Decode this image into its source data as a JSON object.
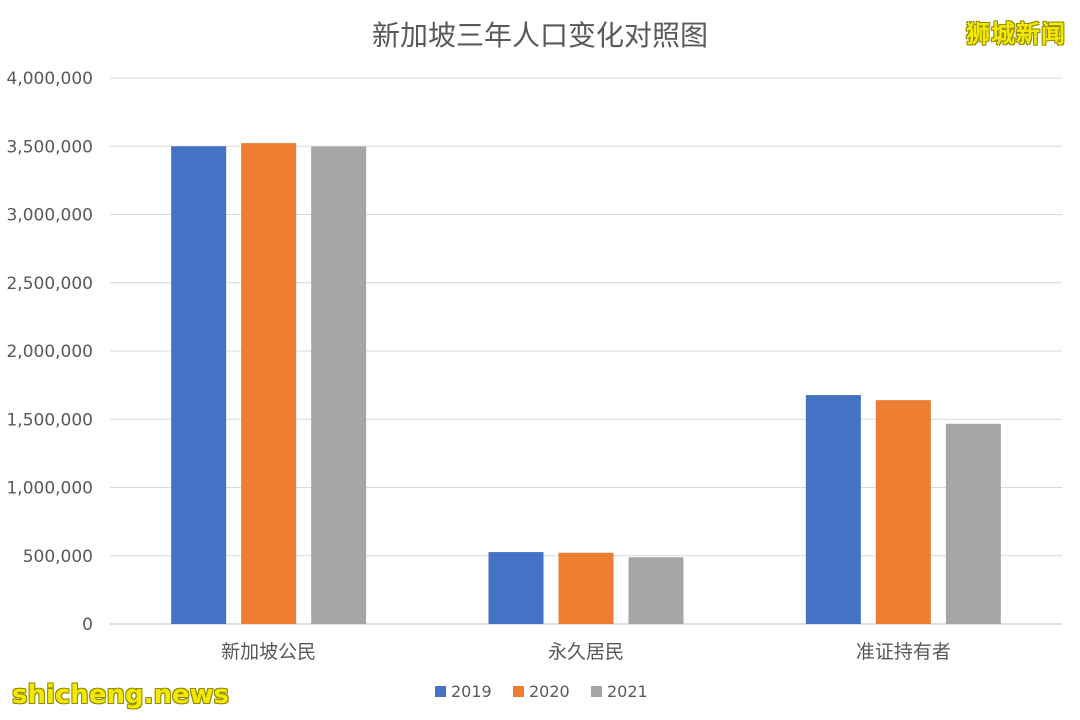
{
  "watermarks": {
    "top_right": "狮城新闻",
    "bottom_left": "shicheng.news"
  },
  "chart_data": {
    "type": "bar",
    "title": "新加坡三年人口变化对照图",
    "xlabel": "",
    "ylabel": "",
    "categories": [
      "新加坡公民",
      "永久居民",
      "准证持有者"
    ],
    "series": [
      {
        "name": "2019",
        "color": "#4472C4",
        "values": [
          3500000,
          527000,
          1677000
        ]
      },
      {
        "name": "2020",
        "color": "#ED7D31",
        "values": [
          3523000,
          522000,
          1640000
        ]
      },
      {
        "name": "2021",
        "color": "#A5A5A5",
        "values": [
          3498000,
          489000,
          1467000
        ]
      }
    ],
    "ylim": [
      0,
      4000000
    ],
    "yticks": [
      0,
      500000,
      1000000,
      1500000,
      2000000,
      2500000,
      3000000,
      3500000,
      4000000
    ],
    "ytick_labels": [
      "0",
      "500,000",
      "1,000,000",
      "1,500,000",
      "2,000,000",
      "2,500,000",
      "3,000,000",
      "3,500,000",
      "4,000,000"
    ],
    "grid": true,
    "legend_position": "bottom-center"
  }
}
